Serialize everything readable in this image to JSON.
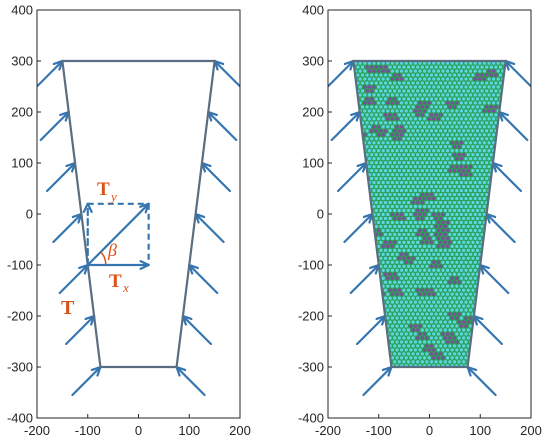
{
  "colors": {
    "axis": "#262626",
    "trapezoid": "#5a6e82",
    "arrow": "#3575b0",
    "label": "#D95319",
    "particle": "#59d6e0",
    "particle_edge": "#2a9a4a",
    "defect": "#7a4f9e"
  },
  "panels": [
    {
      "xticks": [
        "-200",
        "-100",
        "0",
        "100",
        "200"
      ],
      "yticks": [
        "-400",
        "-300",
        "-200",
        "-100",
        "0",
        "100",
        "200",
        "300",
        "400"
      ]
    },
    {
      "xticks": [
        "-200",
        "-100",
        "0",
        "100",
        "200"
      ],
      "yticks": [
        "-400",
        "-300",
        "-200",
        "-100",
        "0",
        "100",
        "200",
        "300",
        "400"
      ]
    }
  ],
  "chart_data": [
    {
      "type": "diagram",
      "xlim": [
        -200,
        200
      ],
      "ylim": [
        -400,
        400
      ],
      "trapezoid": [
        [
          -150,
          300
        ],
        [
          150,
          300
        ],
        [
          75,
          -300
        ],
        [
          -75,
          -300
        ]
      ],
      "traction_arrows_y": [
        300,
        200,
        100,
        0,
        -100,
        -200,
        -300
      ],
      "decomposition": {
        "origin": [
          -100,
          -100
        ],
        "tip": [
          20,
          20
        ]
      },
      "labels": {
        "T": "T",
        "Ty": "T",
        "Ty_sub": "y",
        "Tx": "T",
        "Tx_sub": "x",
        "beta": "β"
      }
    },
    {
      "type": "diagram",
      "xlim": [
        -200,
        200
      ],
      "ylim": [
        -400,
        400
      ],
      "trapezoid": [
        [
          -150,
          300
        ],
        [
          150,
          300
        ],
        [
          75,
          -300
        ],
        [
          -75,
          -300
        ]
      ],
      "traction_arrows_y": [
        300,
        200,
        100,
        0,
        -100,
        -200,
        -300
      ],
      "particles": "hexagonal packing with defects"
    }
  ]
}
